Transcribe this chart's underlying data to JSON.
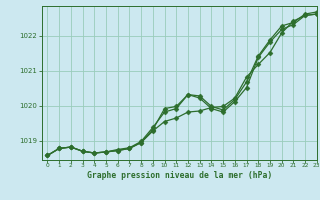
{
  "title": "Graphe pression niveau de la mer (hPa)",
  "bg_color": "#cce8f0",
  "grid_color": "#99ccbb",
  "line_color": "#2d6e2d",
  "marker_color": "#2d6e2d",
  "xlim": [
    -0.5,
    23
  ],
  "ylim": [
    1018.45,
    1022.85
  ],
  "yticks": [
    1019,
    1020,
    1021,
    1022
  ],
  "xticks": [
    0,
    1,
    2,
    3,
    4,
    5,
    6,
    7,
    8,
    9,
    10,
    11,
    12,
    13,
    14,
    15,
    16,
    17,
    18,
    19,
    20,
    21,
    22,
    23
  ],
  "hours": [
    0,
    1,
    2,
    3,
    4,
    5,
    6,
    7,
    8,
    9,
    10,
    11,
    12,
    13,
    14,
    15,
    16,
    17,
    18,
    19,
    20,
    21,
    22,
    23
  ],
  "line1": [
    1018.58,
    1018.78,
    1018.82,
    1018.7,
    1018.65,
    1018.68,
    1018.72,
    1018.78,
    1018.95,
    1019.28,
    1019.55,
    1019.65,
    1019.82,
    1019.85,
    1019.95,
    1019.98,
    1020.22,
    1020.82,
    1021.18,
    1021.52,
    1022.08,
    1022.42,
    1022.58,
    1022.62
  ],
  "line2": [
    1018.58,
    1018.78,
    1018.82,
    1018.7,
    1018.65,
    1018.68,
    1018.72,
    1018.78,
    1018.95,
    1019.32,
    1019.92,
    1019.98,
    1020.32,
    1020.28,
    1019.98,
    1019.88,
    1020.18,
    1020.68,
    1021.42,
    1021.88,
    1022.28,
    1022.38,
    1022.62,
    1022.68
  ],
  "line3": [
    1018.58,
    1018.78,
    1018.82,
    1018.7,
    1018.65,
    1018.68,
    1018.75,
    1018.8,
    1018.98,
    1019.38,
    1019.82,
    1019.92,
    1020.32,
    1020.22,
    1019.92,
    1019.82,
    1020.12,
    1020.52,
    1021.38,
    1021.82,
    1022.18,
    1022.32,
    1022.58,
    1022.62
  ]
}
